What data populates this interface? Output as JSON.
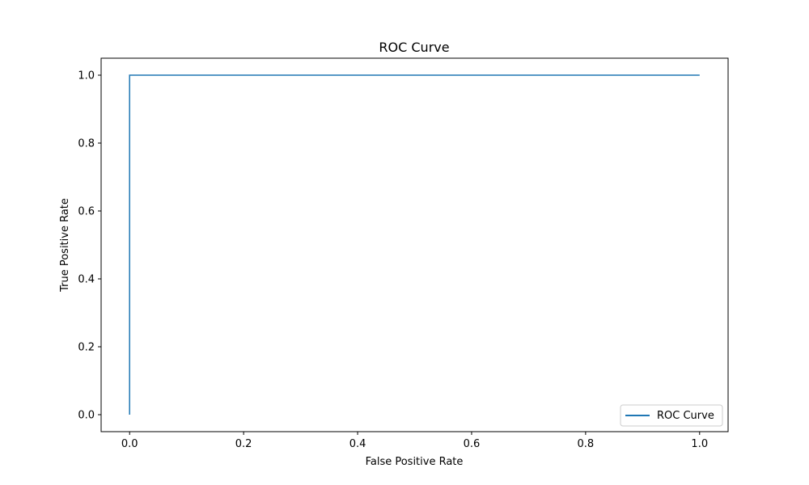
{
  "chart_data": {
    "type": "line",
    "title": "ROC Curve",
    "xlabel": "False Positive Rate",
    "ylabel": "True Positive Rate",
    "xlim": [
      -0.05,
      1.05
    ],
    "ylim": [
      -0.05,
      1.05
    ],
    "xticks": [
      "0.0",
      "0.2",
      "0.4",
      "0.6",
      "0.8",
      "1.0"
    ],
    "yticks": [
      "0.0",
      "0.2",
      "0.4",
      "0.6",
      "0.8",
      "1.0"
    ],
    "grid": false,
    "legend": {
      "position": "lower-right"
    },
    "series": [
      {
        "name": "ROC Curve",
        "color": "#1f77b4",
        "x": [
          0.0,
          0.0,
          1.0
        ],
        "y": [
          0.0,
          1.0,
          1.0
        ]
      }
    ]
  }
}
